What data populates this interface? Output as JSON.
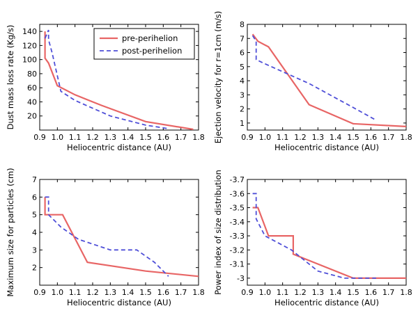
{
  "colors": {
    "pre": "#e86565",
    "post": "#4f4fd8"
  },
  "legend": {
    "pre": "pre-perihelion",
    "post": "post-perihelion"
  },
  "chart_data": [
    {
      "type": "line",
      "xlabel": "Heliocentric distance (AU)",
      "ylabel": "Dust mass loss rate (Kg/s)",
      "xlim": [
        0.9,
        1.8
      ],
      "ylim": [
        0,
        150
      ],
      "xticks": [
        "0.9",
        "1.0",
        "1.1",
        "1.2",
        "1.3",
        "1.4",
        "1.5",
        "1.6",
        "1.7",
        "1.8"
      ],
      "yticks": [
        20,
        40,
        60,
        80,
        100,
        120,
        140
      ],
      "legend": "top-right",
      "series": [
        {
          "name": "pre-perihelion",
          "style": "solid",
          "x": [
            0.93,
            0.93,
            0.95,
            1.0,
            1.1,
            1.25,
            1.5,
            1.77
          ],
          "y": [
            140,
            102,
            95,
            63,
            50,
            35,
            12,
            1
          ]
        },
        {
          "name": "post-perihelion",
          "style": "dashed",
          "x": [
            0.93,
            0.95,
            0.95,
            0.97,
            1.02,
            1.1,
            1.3,
            1.5,
            1.63
          ],
          "y": [
            130,
            142,
            128,
            110,
            55,
            42,
            20,
            7,
            2
          ]
        }
      ]
    },
    {
      "type": "line",
      "xlabel": "Heliocentric distance (AU)",
      "ylabel": "Ejection velocity for r=1cm (m/s)",
      "xlim": [
        0.9,
        1.8
      ],
      "ylim": [
        0.5,
        8
      ],
      "xticks": [
        "0.9",
        "1.0",
        "1.1",
        "1.2",
        "1.3",
        "1.4",
        "1.5",
        "1.6",
        "1.7",
        "1.8"
      ],
      "yticks": [
        1,
        2,
        3,
        4,
        5,
        6,
        7,
        8
      ],
      "series": [
        {
          "name": "pre-perihelion",
          "style": "solid",
          "x": [
            0.93,
            0.96,
            1.02,
            1.25,
            1.5,
            1.8
          ],
          "y": [
            7.3,
            6.8,
            6.4,
            2.3,
            0.95,
            0.75
          ]
        },
        {
          "name": "post-perihelion",
          "style": "dashed",
          "x": [
            0.93,
            0.95,
            0.95,
            1.0,
            1.25,
            1.5,
            1.63
          ],
          "y": [
            7.2,
            6.8,
            5.5,
            5.2,
            3.8,
            2.1,
            1.2
          ]
        }
      ]
    },
    {
      "type": "line",
      "xlabel": "Heliocentric distance (AU)",
      "ylabel": "Maximum size for particles (cm)",
      "xlim": [
        0.9,
        1.8
      ],
      "ylim": [
        1,
        7
      ],
      "xticks": [
        "0.9",
        "1.0",
        "1.1",
        "1.2",
        "1.3",
        "1.4",
        "1.5",
        "1.6",
        "1.7",
        "1.8"
      ],
      "yticks": [
        2,
        3,
        4,
        5,
        6,
        7
      ],
      "series": [
        {
          "name": "pre-perihelion",
          "style": "solid",
          "x": [
            0.93,
            0.93,
            0.95,
            1.03,
            1.17,
            1.5,
            1.8
          ],
          "y": [
            6.0,
            5.0,
            5.0,
            5.0,
            2.3,
            1.8,
            1.5
          ]
        },
        {
          "name": "post-perihelion",
          "style": "dashed",
          "x": [
            0.93,
            0.95,
            0.95,
            1.02,
            1.12,
            1.3,
            1.45,
            1.55,
            1.63
          ],
          "y": [
            6.0,
            6.0,
            5.0,
            4.3,
            3.6,
            3.0,
            3.0,
            2.3,
            1.5
          ]
        }
      ]
    },
    {
      "type": "line",
      "xlabel": "Heliocentric distance (AU)",
      "ylabel": "Power index of size distribution",
      "xlim": [
        0.9,
        1.8
      ],
      "ylim": [
        -2.95,
        -3.7
      ],
      "xticks": [
        "0.9",
        "1.0",
        "1.1",
        "1.2",
        "1.3",
        "1.4",
        "1.5",
        "1.6",
        "1.7",
        "1.8"
      ],
      "yticks": [
        -3.0,
        -3.1,
        -3.2,
        -3.3,
        -3.4,
        -3.5,
        -3.6,
        -3.7
      ],
      "series": [
        {
          "name": "pre-perihelion",
          "style": "solid",
          "x": [
            0.93,
            0.93,
            0.96,
            1.02,
            1.16,
            1.16,
            1.5,
            1.8
          ],
          "y": [
            -3.5,
            -3.5,
            -3.5,
            -3.3,
            -3.3,
            -3.17,
            -3.0,
            -3.0
          ]
        },
        {
          "name": "post-perihelion",
          "style": "dashed",
          "x": [
            0.93,
            0.95,
            0.95,
            1.0,
            1.15,
            1.3,
            1.45,
            1.63
          ],
          "y": [
            -3.6,
            -3.6,
            -3.42,
            -3.3,
            -3.2,
            -3.05,
            -3.0,
            -3.0
          ]
        }
      ]
    }
  ]
}
